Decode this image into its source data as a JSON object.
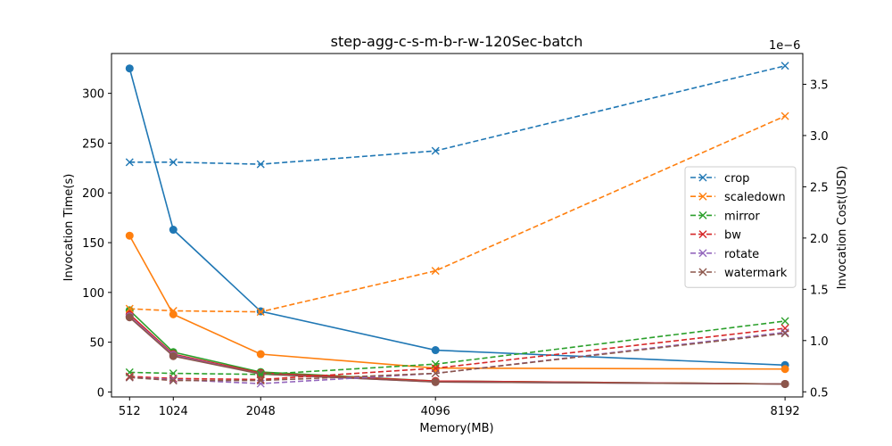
{
  "chart_data": {
    "type": "line",
    "title": "step-agg-c-s-m-b-r-w-120Sec-batch",
    "xlabel": "Memory(MB)",
    "ylabel_left": "Invocation Time(s)",
    "ylabel_right": "Invocation Cost(USD)",
    "right_axis_multiplier": "1e−6",
    "x": [
      512,
      1024,
      2048,
      4096,
      8192
    ],
    "x_ticks": [
      "512",
      "1024",
      "2048",
      "4096",
      "8192"
    ],
    "left_ylim": [
      -5,
      340
    ],
    "left_yticks": [
      0,
      50,
      100,
      150,
      200,
      250,
      300
    ],
    "right_ylim": [
      0.45,
      3.8
    ],
    "right_yticks": [
      0.5,
      1.0,
      1.5,
      2.0,
      2.5,
      3.0,
      3.5
    ],
    "right_ytick_labels": [
      "0.5",
      "1.0",
      "1.5",
      "2.0",
      "2.5",
      "3.0",
      "3.5"
    ],
    "grid": false,
    "legend_position": "center-right",
    "time_series": [
      {
        "key": "crop",
        "color": "#1f77b4",
        "values": [
          325,
          163,
          81,
          42,
          27
        ]
      },
      {
        "key": "scaledown",
        "color": "#ff7f0e",
        "values": [
          157,
          78,
          38,
          24,
          23
        ]
      },
      {
        "key": "mirror",
        "color": "#2ca02c",
        "values": [
          82,
          40,
          20,
          11,
          8
        ]
      },
      {
        "key": "bw",
        "color": "#d62728",
        "values": [
          78,
          38,
          19,
          11,
          8
        ]
      },
      {
        "key": "rotate",
        "color": "#9467bd",
        "values": [
          76,
          37,
          18,
          10,
          8
        ]
      },
      {
        "key": "watermark",
        "color": "#8c564b",
        "values": [
          75,
          36,
          18,
          10,
          8
        ]
      }
    ],
    "cost_series": [
      {
        "name": "crop",
        "color": "#1f77b4",
        "values": [
          2.74,
          2.74,
          2.72,
          2.85,
          3.68
        ]
      },
      {
        "name": "scaledown",
        "color": "#ff7f0e",
        "values": [
          1.31,
          1.29,
          1.28,
          1.68,
          3.19
        ]
      },
      {
        "name": "mirror",
        "color": "#2ca02c",
        "values": [
          0.69,
          0.68,
          0.67,
          0.77,
          1.19
        ]
      },
      {
        "name": "bw",
        "color": "#d62728",
        "values": [
          0.65,
          0.63,
          0.62,
          0.73,
          1.12
        ]
      },
      {
        "name": "rotate",
        "color": "#9467bd",
        "values": [
          0.64,
          0.62,
          0.58,
          0.68,
          1.08
        ]
      },
      {
        "name": "watermark",
        "color": "#8c564b",
        "values": [
          0.64,
          0.61,
          0.61,
          0.68,
          1.07
        ]
      }
    ]
  }
}
